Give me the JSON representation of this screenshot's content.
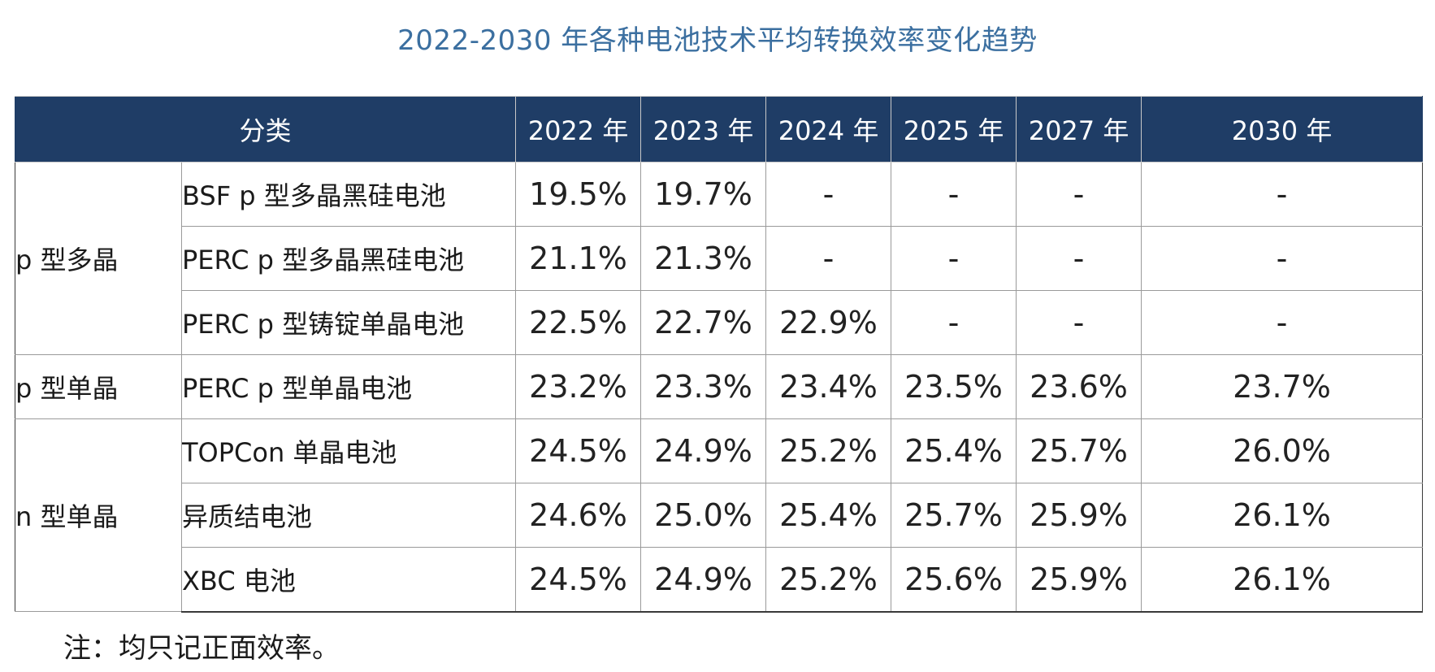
{
  "title": "2022-2030 年各种电池技术平均转换效率变化趋势",
  "table": {
    "category_header": "分类",
    "years": [
      "2022 年",
      "2023 年",
      "2024 年",
      "2025 年",
      "2027 年",
      "2030 年"
    ],
    "groups": [
      {
        "name": "p 型多晶",
        "rows": [
          {
            "tech": "BSF p 型多晶黑硅电池",
            "values": [
              "19.5%",
              "19.7%",
              "-",
              "-",
              "-",
              "-"
            ]
          },
          {
            "tech": "PERC p 型多晶黑硅电池",
            "values": [
              "21.1%",
              "21.3%",
              "-",
              "-",
              "-",
              "-"
            ]
          },
          {
            "tech": "PERC p 型铸锭单晶电池",
            "values": [
              "22.5%",
              "22.7%",
              "22.9%",
              "-",
              "-",
              "-"
            ]
          }
        ]
      },
      {
        "name": "p 型单晶",
        "rows": [
          {
            "tech": "PERC p 型单晶电池",
            "values": [
              "23.2%",
              "23.3%",
              "23.4%",
              "23.5%",
              "23.6%",
              "23.7%"
            ]
          }
        ]
      },
      {
        "name": "n 型单晶",
        "rows": [
          {
            "tech": "TOPCon 单晶电池",
            "values": [
              "24.5%",
              "24.9%",
              "25.2%",
              "25.4%",
              "25.7%",
              "26.0%"
            ]
          },
          {
            "tech": "异质结电池",
            "values": [
              "24.6%",
              "25.0%",
              "25.4%",
              "25.7%",
              "25.9%",
              "26.1%"
            ]
          },
          {
            "tech": "XBC 电池",
            "values": [
              "24.5%",
              "24.9%",
              "25.2%",
              "25.6%",
              "25.9%",
              "26.1%"
            ]
          }
        ]
      }
    ]
  },
  "note": "注：均只记正面效率。",
  "colors": {
    "header_bg": "#1f3d66",
    "title_text": "#3b6fa0"
  }
}
